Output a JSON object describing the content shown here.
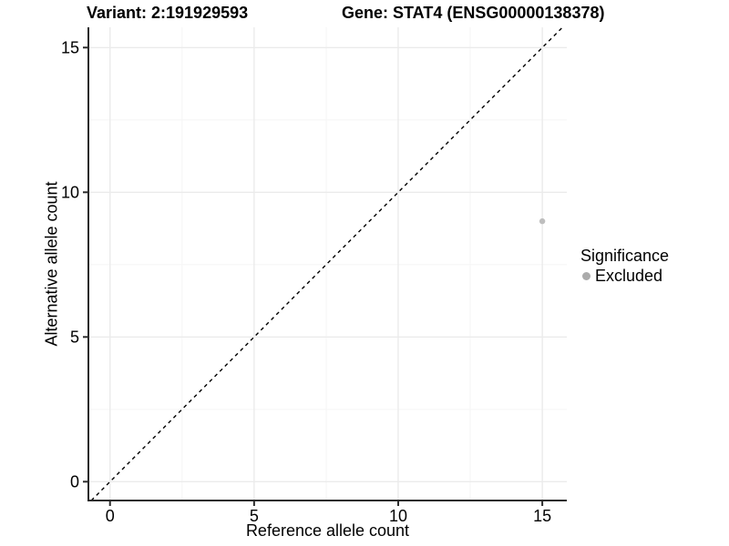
{
  "chart_data": {
    "type": "scatter",
    "title_left": "Variant: 2:191929593",
    "title_right": "Gene: STAT4 (ENSG00000138378)",
    "xlabel": "Reference allele count",
    "ylabel": "Alternative allele count",
    "xlim": [
      -0.75,
      15.85
    ],
    "ylim": [
      -0.65,
      15.7
    ],
    "x_ticks": [
      0,
      5,
      10,
      15
    ],
    "y_ticks": [
      0,
      5,
      10,
      15
    ],
    "minor_ticks": [
      2.5,
      7.5,
      12.5
    ],
    "grid": true,
    "reference_line": {
      "type": "identity",
      "style": "dashed",
      "color": "#000000"
    },
    "series": [
      {
        "name": "Excluded",
        "color": "#bebebe",
        "marker": "circle",
        "points": [
          {
            "x": 15,
            "y": 9
          }
        ]
      }
    ],
    "legend": {
      "title": "Significance",
      "position": "right",
      "items": [
        {
          "label": "Excluded",
          "color": "#ababab",
          "marker": "circle"
        }
      ]
    },
    "colors": {
      "grid_major": "#ebebeb",
      "grid_minor": "#f5f5f5",
      "axis": "#2b2b2b",
      "text": "#000000",
      "background": "#ffffff"
    }
  }
}
